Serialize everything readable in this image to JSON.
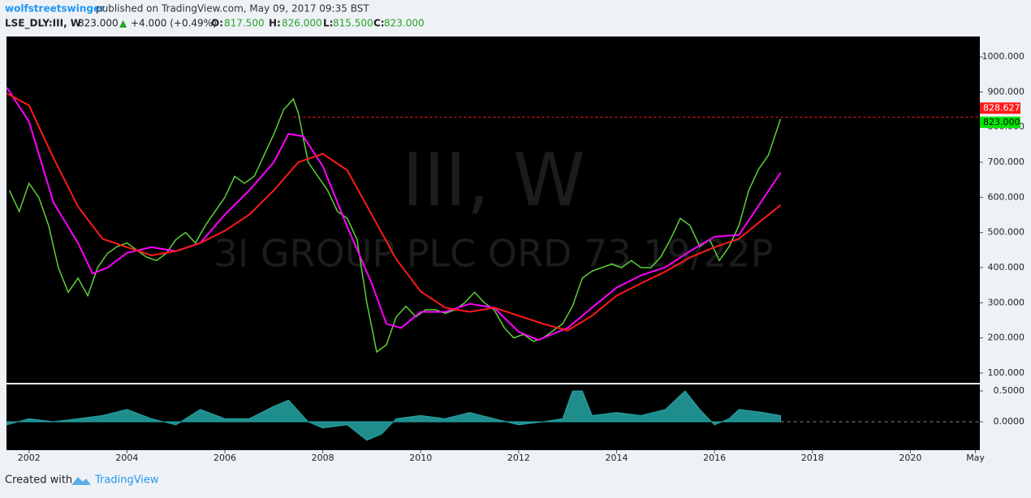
{
  "header": {
    "author": "wolfstreetswinger",
    "published": "published on TradingView.com, May 09, 2017 09:35 BST",
    "symbol": "LSE_DLY:III, W",
    "last": "823.000",
    "arrow": "▲",
    "change": "+4.000 (+0.49%)",
    "o_label": "O:",
    "o": "817.500",
    "h_label": "H:",
    "h": "826.000",
    "l_label": "L:",
    "l": "815.500",
    "c_label": "C:",
    "c": "823.000"
  },
  "watermark": {
    "ticker": "III, W",
    "name": "3I GROUP PLC ORD 73 19/22P"
  },
  "chart_data": [
    {
      "type": "line",
      "ylim": [
        72,
        1058
      ],
      "xlim": [
        2001.54,
        2021.42
      ],
      "yticks": [
        {
          "value": 100,
          "label": "100.000"
        },
        {
          "value": 200,
          "label": "200.000"
        },
        {
          "value": 300,
          "label": "300.000"
        },
        {
          "value": 400,
          "label": "400.000"
        },
        {
          "value": 500,
          "label": "500.000"
        },
        {
          "value": 600,
          "label": "600.000"
        },
        {
          "value": 700,
          "label": "700.000"
        },
        {
          "value": 800,
          "label": "800.000"
        },
        {
          "value": 900,
          "label": "900.000"
        },
        {
          "value": 1000,
          "label": "1000.000"
        }
      ],
      "xticks": [
        2002,
        2004,
        2006,
        2008,
        2010,
        2012,
        2014,
        2016,
        2018,
        2020,
        {
          "value": 2021.33,
          "label": "May"
        }
      ],
      "price_labels": [
        {
          "value": 828.627,
          "label": "828.627",
          "color": "#ff1a1a"
        },
        {
          "value": 823,
          "label": "823.000",
          "color": "#00e600"
        }
      ],
      "series": [
        {
          "name": "Price",
          "color": "#5fcf3a",
          "x": [
            2001.6,
            2001.8,
            2002.0,
            2002.2,
            2002.4,
            2002.6,
            2002.8,
            2003.0,
            2003.2,
            2003.4,
            2003.6,
            2003.8,
            2004.0,
            2004.2,
            2004.4,
            2004.6,
            2004.8,
            2005.0,
            2005.2,
            2005.4,
            2005.6,
            2005.8,
            2006.0,
            2006.2,
            2006.4,
            2006.6,
            2006.8,
            2007.0,
            2007.2,
            2007.4,
            2007.5,
            2007.7,
            2007.9,
            2008.1,
            2008.3,
            2008.5,
            2008.7,
            2008.9,
            2009.1,
            2009.3,
            2009.5,
            2009.7,
            2009.9,
            2010.1,
            2010.3,
            2010.5,
            2010.7,
            2010.9,
            2011.1,
            2011.3,
            2011.5,
            2011.7,
            2011.9,
            2012.1,
            2012.3,
            2012.5,
            2012.7,
            2012.9,
            2013.1,
            2013.3,
            2013.5,
            2013.7,
            2013.9,
            2014.1,
            2014.3,
            2014.5,
            2014.7,
            2014.9,
            2015.1,
            2015.3,
            2015.5,
            2015.7,
            2015.9,
            2016.1,
            2016.3,
            2016.5,
            2016.7,
            2016.9,
            2017.1,
            2017.35
          ],
          "values": [
            620,
            560,
            640,
            600,
            520,
            400,
            330,
            370,
            320,
            400,
            440,
            460,
            470,
            450,
            430,
            420,
            440,
            480,
            500,
            470,
            520,
            560,
            600,
            660,
            640,
            660,
            720,
            780,
            850,
            880,
            840,
            700,
            660,
            620,
            560,
            540,
            480,
            300,
            160,
            180,
            260,
            290,
            260,
            280,
            280,
            270,
            280,
            300,
            330,
            300,
            280,
            230,
            200,
            210,
            190,
            200,
            220,
            240,
            290,
            370,
            390,
            400,
            410,
            400,
            420,
            400,
            400,
            430,
            480,
            540,
            520,
            460,
            480,
            420,
            460,
            520,
            620,
            680,
            720,
            823
          ]
        },
        {
          "name": "MA fast",
          "color": "#ff00ff",
          "x": [
            2001.55,
            2002.0,
            2002.5,
            2003.0,
            2003.3,
            2003.6,
            2004.0,
            2004.5,
            2005.0,
            2005.5,
            2006.0,
            2006.5,
            2007.0,
            2007.3,
            2007.6,
            2008.0,
            2008.5,
            2009.0,
            2009.3,
            2009.6,
            2010.0,
            2010.5,
            2011.0,
            2011.5,
            2012.0,
            2012.4,
            2012.8,
            2013.0,
            2013.5,
            2014.0,
            2014.5,
            2015.0,
            2015.5,
            2016.0,
            2016.5,
            2017.0,
            2017.35
          ],
          "values": [
            912,
            816,
            585,
            470,
            383,
            400,
            442,
            458,
            447,
            470,
            551,
            620,
            700,
            781,
            774,
            689,
            516,
            355,
            240,
            228,
            274,
            274,
            297,
            286,
            217,
            194,
            217,
            228,
            286,
            343,
            378,
            401,
            447,
            488,
            493,
            597,
            670
          ]
        },
        {
          "name": "MA slow",
          "color": "#ff1a1a",
          "x": [
            2001.55,
            2002.0,
            2002.5,
            2003.0,
            2003.5,
            2004.0,
            2004.5,
            2005.0,
            2005.5,
            2006.0,
            2006.5,
            2007.0,
            2007.5,
            2008.0,
            2008.5,
            2009.0,
            2009.5,
            2010.0,
            2010.5,
            2011.0,
            2011.5,
            2012.0,
            2012.5,
            2013.0,
            2013.5,
            2014.0,
            2014.5,
            2015.0,
            2015.5,
            2016.0,
            2016.5,
            2017.0,
            2017.35
          ],
          "values": [
            896,
            862,
            712,
            574,
            482,
            458,
            435,
            447,
            470,
            505,
            551,
            620,
            700,
            724,
            677,
            551,
            424,
            332,
            286,
            274,
            286,
            263,
            240,
            221,
            263,
            320,
            355,
            389,
            429,
            458,
            482,
            539,
            578
          ]
        }
      ]
    },
    {
      "type": "area",
      "ylim": [
        -0.46,
        0.605
      ],
      "xlim": [
        2001.54,
        2021.42
      ],
      "yticks": [
        {
          "value": 0,
          "label": "0.0000"
        },
        {
          "value": 0.5,
          "label": "0.5000"
        }
      ],
      "series": [
        {
          "name": "Oscillator",
          "color": "#26a6a6",
          "x": [
            2001.55,
            2002.0,
            2002.5,
            2003.0,
            2003.5,
            2004.0,
            2004.5,
            2005.0,
            2005.5,
            2006.0,
            2006.5,
            2007.0,
            2007.3,
            2007.7,
            2008.0,
            2008.5,
            2008.9,
            2009.2,
            2009.5,
            2010.0,
            2010.5,
            2011.0,
            2011.5,
            2012.0,
            2012.5,
            2012.9,
            2013.1,
            2013.3,
            2013.5,
            2014.0,
            2014.5,
            2015.0,
            2015.4,
            2015.7,
            2016.0,
            2016.3,
            2016.5,
            2017.0,
            2017.35
          ],
          "values": [
            -0.05,
            0.05,
            0.0,
            0.05,
            0.1,
            0.2,
            0.05,
            -0.05,
            0.2,
            0.05,
            0.05,
            0.25,
            0.35,
            0.0,
            -0.1,
            -0.05,
            -0.3,
            -0.2,
            0.05,
            0.1,
            0.05,
            0.15,
            0.05,
            -0.05,
            0.0,
            0.05,
            0.5,
            0.5,
            0.1,
            0.15,
            0.1,
            0.2,
            0.5,
            0.2,
            -0.05,
            0.05,
            0.2,
            0.15,
            0.1
          ]
        }
      ]
    }
  ],
  "footer": {
    "created": "Created with",
    "brand": "TradingView"
  }
}
